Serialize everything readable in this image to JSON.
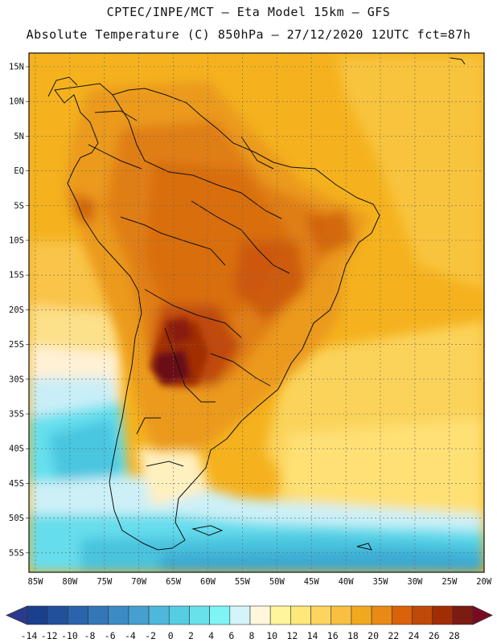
{
  "header": {
    "line1": "CPTEC/INPE/MCT –  Eta Model 15km – GFS",
    "line2": "Absolute Temperature (C) 850hPa – 27/12/2020 12UTC fct=87h"
  },
  "map": {
    "lat_labels": [
      "15N",
      "10N",
      "5N",
      "EQ",
      "5S",
      "10S",
      "15S",
      "20S",
      "25S",
      "30S",
      "35S",
      "40S",
      "45S",
      "50S",
      "55S"
    ],
    "lon_labels": [
      "85W",
      "80W",
      "75W",
      "70W",
      "65W",
      "60W",
      "55W",
      "50W",
      "45W",
      "40W",
      "35W",
      "30W",
      "25W",
      "20W"
    ]
  },
  "colorbar": {
    "labels": [
      "-14",
      "-12",
      "-10",
      "-8",
      "-6",
      "-4",
      "-2",
      "0",
      "2",
      "4",
      "6",
      "8",
      "10",
      "12",
      "14",
      "16",
      "18",
      "20",
      "22",
      "24",
      "26",
      "28"
    ],
    "colors": [
      "#1a3f8c",
      "#22519c",
      "#2a64ac",
      "#3477b8",
      "#3d8bc4",
      "#45a0cf",
      "#4db8da",
      "#55cde3",
      "#68e2ea",
      "#7ff4f4",
      "#d4f4fa",
      "#fff6dc",
      "#fff59a",
      "#ffe77a",
      "#ffd45e",
      "#f8bf41",
      "#f0a81f",
      "#e88a14",
      "#d9620a",
      "#c04808",
      "#a22d05",
      "#7b1b12"
    ],
    "low_color": "#2b3a8f",
    "high_color": "#7a0a22"
  }
}
